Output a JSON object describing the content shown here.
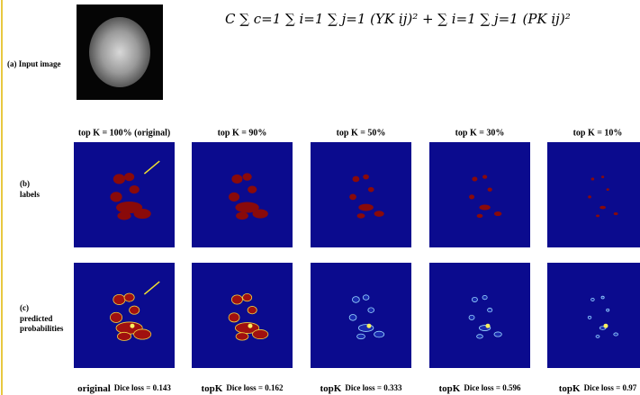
{
  "equation": "C ∑ c=1   ∑ i=1 ∑ j=1 (YK ij)²  +  ∑ i=1 ∑ j=1 (PK ij)²",
  "input_label": "(a) Input image",
  "rows": [
    [
      "(b)",
      "labels"
    ],
    [
      "(c)",
      "predicted",
      "probabilities"
    ]
  ],
  "columns": [
    {
      "header": "top K = 100% (original)",
      "caption_prefix": "original",
      "caption": "Dice loss = 0.143"
    },
    {
      "header": "top K = 90%",
      "caption_prefix": "topK",
      "caption": "Dice loss = 0.162"
    },
    {
      "header": "top K = 50%",
      "caption_prefix": "topK",
      "caption": "Dice loss = 0.333"
    },
    {
      "header": "top K = 30%",
      "caption_prefix": "topK",
      "caption": "Dice loss = 0.596"
    },
    {
      "header": "top K = 10%",
      "caption_prefix": "topK",
      "caption": "Dice loss = 0.97"
    }
  ]
}
